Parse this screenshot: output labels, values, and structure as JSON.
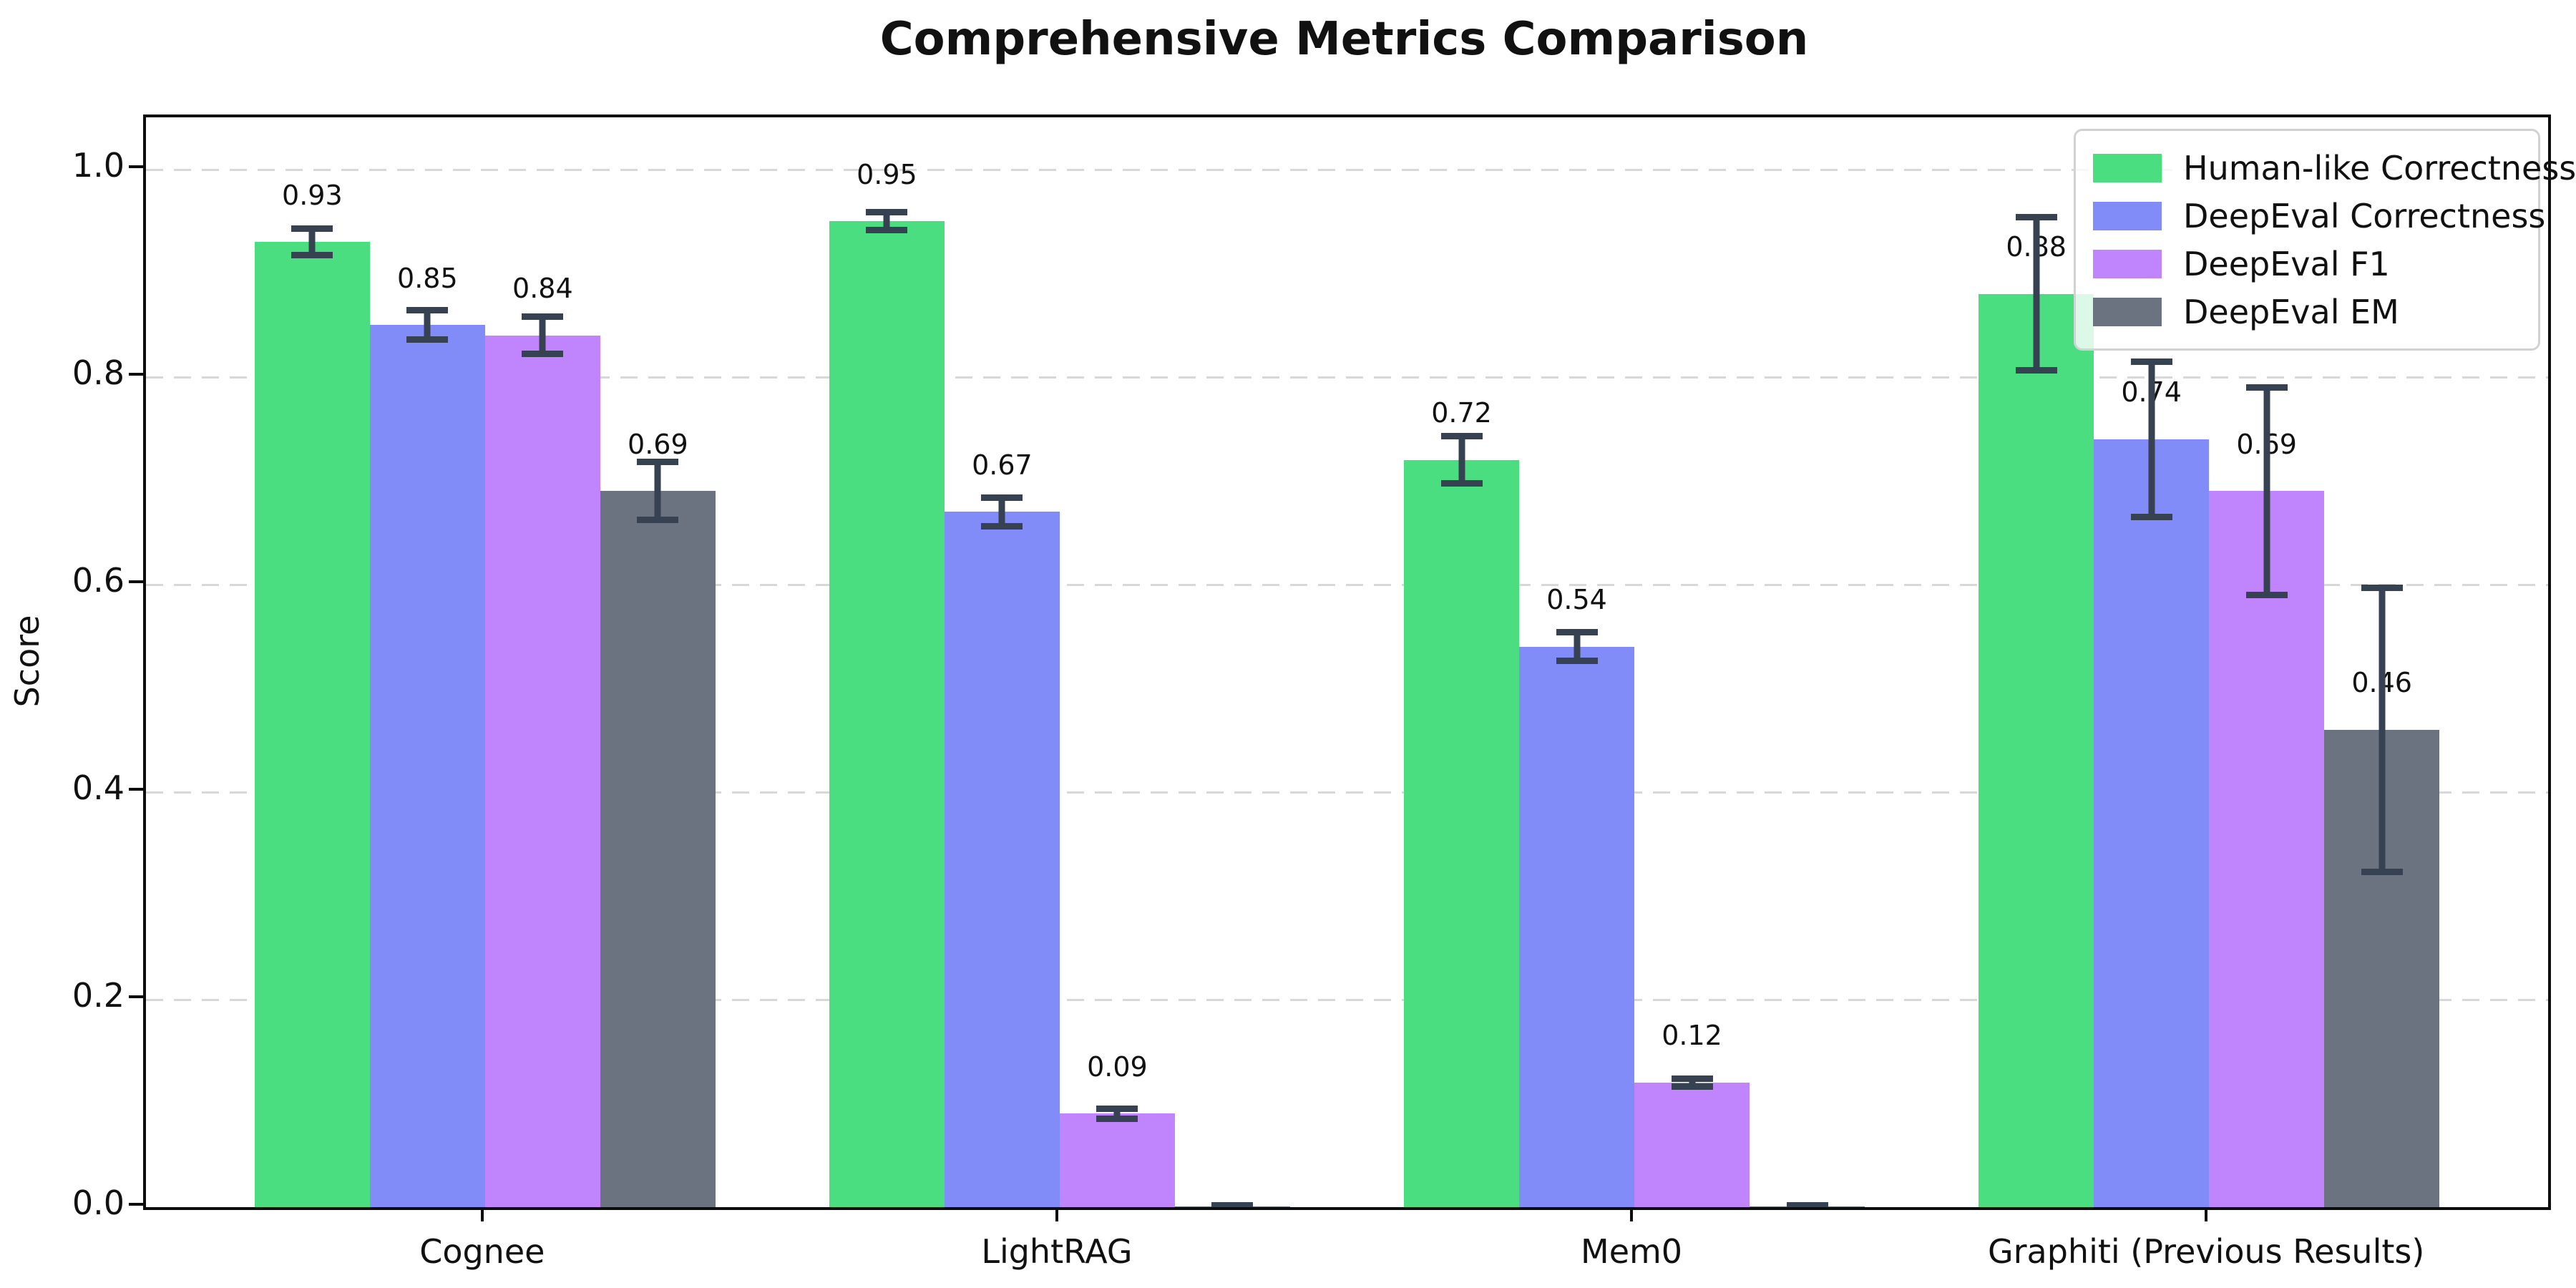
{
  "title": "Comprehensive Metrics Comparison",
  "chart_data": {
    "type": "bar",
    "title": "Comprehensive Metrics Comparison",
    "xlabel": "",
    "ylabel": "Score",
    "categories": [
      "Cognee",
      "LightRAG",
      "Mem0",
      "Graphiti (Previous Results)"
    ],
    "series": [
      {
        "name": "Human-like Correctness",
        "color": "#4ade80",
        "values": [
          0.93,
          0.95,
          0.72,
          0.88
        ],
        "errors": [
          0.016,
          0.012,
          0.026,
          0.077
        ],
        "labels": [
          "0.93",
          "0.95",
          "0.72",
          "0.88"
        ]
      },
      {
        "name": "DeepEval Correctness",
        "color": "#818cf8",
        "values": [
          0.85,
          0.67,
          0.54,
          0.74
        ],
        "errors": [
          0.017,
          0.017,
          0.017,
          0.078
        ],
        "labels": [
          "0.85",
          "0.67",
          "0.54",
          "0.74"
        ]
      },
      {
        "name": "DeepEval F1",
        "color": "#c084fc",
        "values": [
          0.84,
          0.09,
          0.12,
          0.69
        ],
        "errors": [
          0.021,
          0.008,
          0.007,
          0.103
        ],
        "labels": [
          "0.84",
          "0.09",
          "0.12",
          "0.69"
        ]
      },
      {
        "name": "DeepEval EM",
        "color": "#6b7280",
        "values": [
          0.69,
          0.001,
          0.001,
          0.46
        ],
        "errors": [
          0.031,
          0.004,
          0.004,
          0.14
        ],
        "labels": [
          "0.69",
          null,
          null,
          "0.46"
        ]
      }
    ],
    "yticks": [
      "0.0",
      "0.2",
      "0.4",
      "0.6",
      "0.8",
      "1.0"
    ],
    "ytick_values": [
      0.0,
      0.2,
      0.4,
      0.6,
      0.8,
      1.0
    ],
    "ylim": [
      0,
      1.05
    ],
    "grid": "horizontal-dashed",
    "legend_position": "upper-right",
    "error_color": "#364152",
    "background": "#ffffff"
  }
}
